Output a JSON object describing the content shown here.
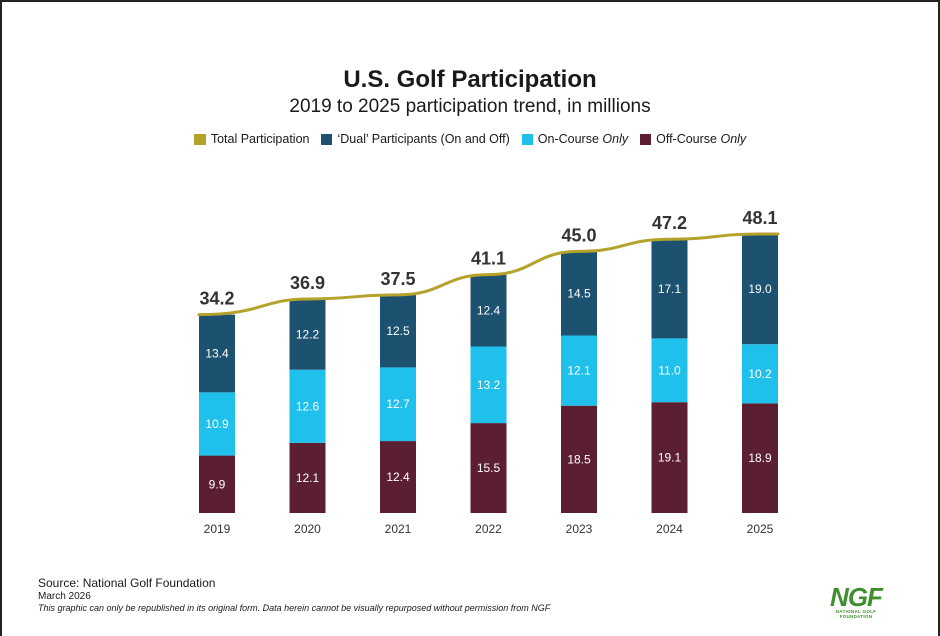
{
  "chart_data": {
    "type": "bar",
    "stacked": true,
    "title": "U.S. Golf Participation",
    "subtitle": "2019 to 2025 participation trend, in millions",
    "categories": [
      "2019",
      "2020",
      "2021",
      "2022",
      "2023",
      "2024",
      "2025"
    ],
    "series": [
      {
        "name": "Off-Course Only",
        "color": "#5c1f32",
        "values": [
          9.9,
          12.1,
          12.4,
          15.5,
          18.5,
          19.1,
          18.9
        ]
      },
      {
        "name": "On-Course Only",
        "color": "#1fc0eb",
        "values": [
          10.9,
          12.6,
          12.7,
          13.2,
          12.1,
          11.0,
          10.2
        ]
      },
      {
        "name": "'Dual' Participants (On and Off)",
        "color": "#1c5170",
        "values": [
          13.4,
          12.2,
          12.5,
          12.4,
          14.5,
          17.1,
          19.0
        ]
      }
    ],
    "line": {
      "name": "Total Participation",
      "color": "#b5a22a",
      "values": [
        34.2,
        36.9,
        37.5,
        41.1,
        45.0,
        47.2,
        48.1
      ]
    },
    "ylim": [
      0,
      48.1
    ],
    "grid": false,
    "legend_position": "top"
  },
  "legend": [
    {
      "type": "line",
      "label": "Total Participation",
      "italic_part": "",
      "color": "#b5a22a"
    },
    {
      "type": "box",
      "label": "‘Dual’ Participants (On and Off)",
      "italic_part": "",
      "color": "#1c5170"
    },
    {
      "type": "box",
      "label": "On-Course ",
      "italic_part": "Only",
      "color": "#1fc0eb"
    },
    {
      "type": "box",
      "label": "Off-Course ",
      "italic_part": "Only",
      "color": "#5c1f32"
    }
  ],
  "footer": {
    "source": "Source: National Golf Foundation",
    "date": "March 2026",
    "note": "This graphic can only be republished in its original form. Data herein cannot be visually repurposed without permission from NGF"
  },
  "logo": {
    "mark": "NGF",
    "subtext": "NATIONAL GOLF FOUNDATION"
  }
}
